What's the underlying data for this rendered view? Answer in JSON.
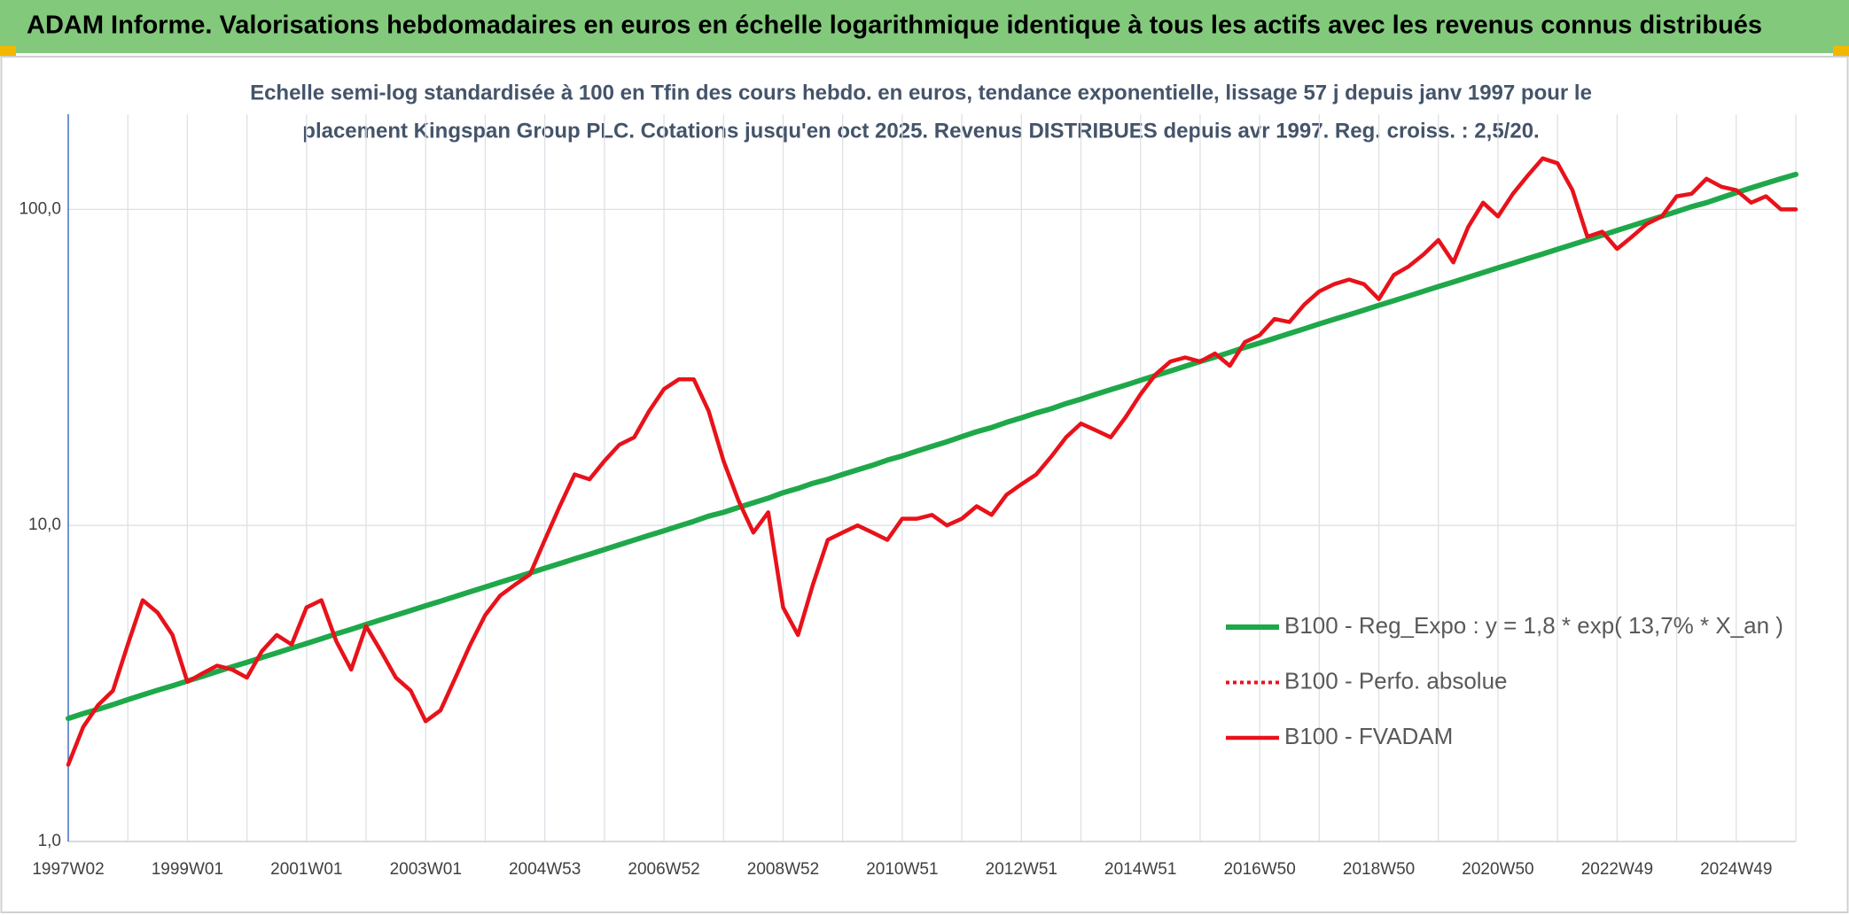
{
  "chart_data": {
    "type": "line",
    "title": "ADAM Informe. Valorisations hebdomadaires en euros en échelle logarithmique identique à tous les actifs avec les revenus connus distribués",
    "subtitle": [
      "Echelle semi-log standardisée à 100 en Tfin des cours hebdo. en euros, tendance exponentielle, lissage 57 j depuis janv 1997 pour le",
      "placement Kingspan Group PLC. Cotations jusqu'en oct 2025. Revenus DISTRIBUES depuis avr 1997. Reg. croiss. : 2,5/20."
    ],
    "categories": [
      "1997W02",
      null,
      null,
      null,
      null,
      null,
      null,
      null,
      "1999W01",
      null,
      null,
      null,
      null,
      null,
      null,
      null,
      "2001W01",
      null,
      null,
      null,
      null,
      null,
      null,
      null,
      "2003W01",
      null,
      null,
      null,
      null,
      null,
      null,
      null,
      "2004W53",
      null,
      null,
      null,
      null,
      null,
      null,
      null,
      "2006W52",
      null,
      null,
      null,
      null,
      null,
      null,
      null,
      "2008W52",
      null,
      null,
      null,
      null,
      null,
      null,
      null,
      "2010W51",
      null,
      null,
      null,
      null,
      null,
      null,
      null,
      "2012W51",
      null,
      null,
      null,
      null,
      null,
      null,
      null,
      "2014W51",
      null,
      null,
      null,
      null,
      null,
      null,
      null,
      "2016W50",
      null,
      null,
      null,
      null,
      null,
      null,
      null,
      "2018W50",
      null,
      null,
      null,
      null,
      null,
      null,
      null,
      "2020W50",
      null,
      null,
      null,
      null,
      null,
      null,
      null,
      "2022W49",
      null,
      null,
      null,
      null,
      null,
      null,
      null,
      "2024W49",
      null,
      null,
      null,
      null
    ],
    "log_scale": true,
    "ylim": [
      1,
      200
    ],
    "yticks": [
      {
        "value": 1,
        "label": "1,0"
      },
      {
        "value": 10,
        "label": "10,0"
      },
      {
        "value": 100,
        "label": "100,0"
      }
    ],
    "grid": true,
    "legend": "lower right",
    "series": [
      {
        "name": "B100 - Reg_Expo : y = 1,8 * exp( 13,7% *  X_an )",
        "color": "#1fa84a",
        "style": "solid",
        "values": [
          2.45,
          2.54,
          2.62,
          2.71,
          2.81,
          2.91,
          3.01,
          3.11,
          3.22,
          3.33,
          3.45,
          3.57,
          3.69,
          3.82,
          3.95,
          4.09,
          4.23,
          4.38,
          4.54,
          4.69,
          4.86,
          5.03,
          5.2,
          5.38,
          5.57,
          5.76,
          5.96,
          6.17,
          6.38,
          6.61,
          6.84,
          7.07,
          7.32,
          7.57,
          7.84,
          8.11,
          8.39,
          8.69,
          8.99,
          9.3,
          9.62,
          9.96,
          10.3,
          10.7,
          11.0,
          11.4,
          11.8,
          12.2,
          12.7,
          13.1,
          13.6,
          14.0,
          14.5,
          15.0,
          15.5,
          16.1,
          16.6,
          17.2,
          17.8,
          18.4,
          19.1,
          19.8,
          20.4,
          21.2,
          21.9,
          22.7,
          23.4,
          24.3,
          25.1,
          26.0,
          26.9,
          27.8,
          28.8,
          29.8,
          30.8,
          31.9,
          33.0,
          34.1,
          35.3,
          36.6,
          37.8,
          39.1,
          40.5,
          41.9,
          43.4,
          44.9,
          46.4,
          48.0,
          49.7,
          51.4,
          53.2,
          55.1,
          57.0,
          58.9,
          61.0,
          63.1,
          65.3,
          67.5,
          69.9,
          72.3,
          74.8,
          77.4,
          80.1,
          82.9,
          85.8,
          88.8,
          91.9,
          95.1,
          98.4,
          102,
          105,
          109,
          113,
          117,
          121,
          125,
          129
        ]
      },
      {
        "name": "B100 - Perfo. absolue",
        "color": "#e8121a",
        "style": "dotted",
        "values": [
          1.75,
          2.3,
          2.7,
          3.0,
          4.2,
          5.8,
          5.3,
          4.5,
          3.2,
          3.4,
          3.6,
          3.5,
          3.3,
          4.0,
          4.5,
          4.2,
          5.5,
          5.8,
          4.3,
          3.5,
          4.8,
          4.0,
          3.3,
          3.0,
          2.4,
          2.6,
          3.3,
          4.2,
          5.2,
          6.0,
          6.5,
          7.0,
          9.0,
          11.5,
          14.5,
          14.0,
          16,
          18,
          19,
          23,
          27,
          29,
          29,
          23,
          16,
          12,
          9.5,
          11,
          5.5,
          4.5,
          6.5,
          9.0,
          9.5,
          10,
          9.5,
          9.0,
          10.5,
          10.5,
          10.8,
          10,
          10.5,
          11.5,
          10.8,
          12.5,
          13.5,
          14.5,
          16.5,
          19,
          21,
          20,
          19,
          22,
          26,
          30,
          33,
          34,
          33,
          35,
          32,
          38,
          40,
          45,
          44,
          50,
          55,
          58,
          60,
          58,
          52,
          62,
          66,
          72,
          80,
          68,
          88,
          105,
          95,
          112,
          128,
          145,
          140,
          115,
          82,
          85,
          75,
          82,
          90,
          95,
          110,
          112,
          125,
          118,
          115,
          105,
          110,
          100,
          100
        ]
      },
      {
        "name": "B100 - FVADAM",
        "color": "#e8121a",
        "style": "solid",
        "values": [
          1.75,
          2.3,
          2.7,
          3.0,
          4.2,
          5.8,
          5.3,
          4.5,
          3.2,
          3.4,
          3.6,
          3.5,
          3.3,
          4.0,
          4.5,
          4.2,
          5.5,
          5.8,
          4.3,
          3.5,
          4.8,
          4.0,
          3.3,
          3.0,
          2.4,
          2.6,
          3.3,
          4.2,
          5.2,
          6.0,
          6.5,
          7.0,
          9.0,
          11.5,
          14.5,
          14.0,
          16,
          18,
          19,
          23,
          27,
          29,
          29,
          23,
          16,
          12,
          9.5,
          11,
          5.5,
          4.5,
          6.5,
          9.0,
          9.5,
          10,
          9.5,
          9.0,
          10.5,
          10.5,
          10.8,
          10,
          10.5,
          11.5,
          10.8,
          12.5,
          13.5,
          14.5,
          16.5,
          19,
          21,
          20,
          19,
          22,
          26,
          30,
          33,
          34,
          33,
          35,
          32,
          38,
          40,
          45,
          44,
          50,
          55,
          58,
          60,
          58,
          52,
          62,
          66,
          72,
          80,
          68,
          88,
          105,
          95,
          112,
          128,
          145,
          140,
          115,
          82,
          85,
          75,
          82,
          90,
          95,
          110,
          112,
          125,
          118,
          115,
          105,
          110,
          100,
          100
        ]
      }
    ]
  }
}
